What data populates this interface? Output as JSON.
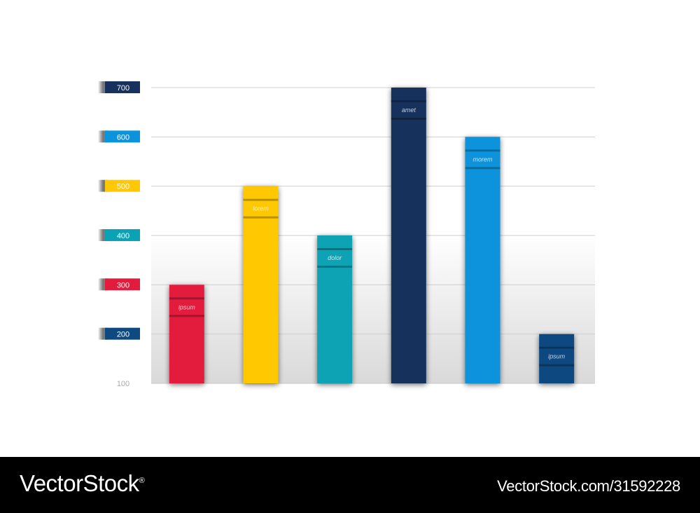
{
  "chart_data": {
    "type": "bar",
    "title": "",
    "xlabel": "",
    "ylabel": "",
    "ylim": [
      100,
      700
    ],
    "yticks": [
      {
        "value": 100,
        "label": "100",
        "color": null
      },
      {
        "value": 200,
        "label": "200",
        "color": "#0e4a80"
      },
      {
        "value": 300,
        "label": "300",
        "color": "#e31c3d"
      },
      {
        "value": 400,
        "label": "400",
        "color": "#0aa3b5"
      },
      {
        "value": 500,
        "label": "500",
        "color": "#ffc805"
      },
      {
        "value": 600,
        "label": "600",
        "color": "#0b93dc"
      },
      {
        "value": 700,
        "label": "700",
        "color": "#17305c"
      }
    ],
    "grid": true,
    "legend": "none",
    "categories": [
      "ipsum",
      "lorem",
      "dolor",
      "amet",
      "morem",
      "ipsum"
    ],
    "values": [
      300,
      500,
      400,
      700,
      600,
      200
    ],
    "colors": [
      "#e31c3d",
      "#ffc805",
      "#0aa3b5",
      "#17305c",
      "#0b93dc",
      "#0e4a80"
    ]
  },
  "footer": {
    "brand": "VectorStock",
    "reg_mark": "®",
    "image_id": "VectorStock.com/31592228"
  }
}
